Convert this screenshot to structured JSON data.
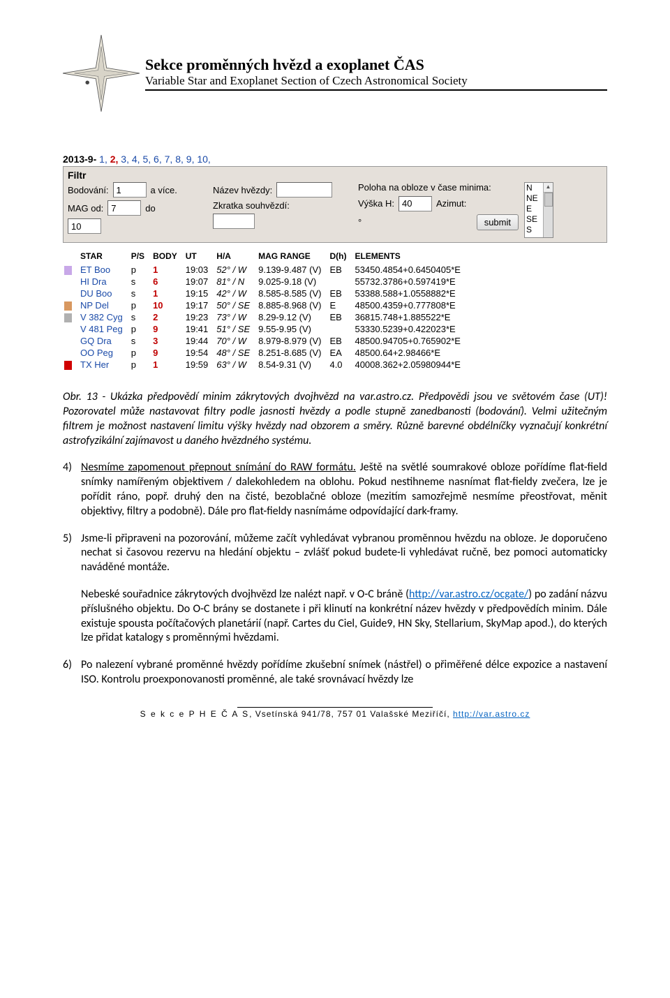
{
  "header": {
    "title": "Sekce proměnných hvězd a exoplanet ČAS",
    "subtitle": "Variable Star and Exoplanet Section of Czech Astronomical Society"
  },
  "date": {
    "prefix": "2013-9-",
    "days": [
      "1",
      "2",
      "3",
      "4",
      "5",
      "6",
      "7",
      "8",
      "9",
      "10"
    ],
    "highlight": "2"
  },
  "filter": {
    "title": "Filtr",
    "labels": {
      "bodovani": "Bodování:",
      "avice": "a více.",
      "magod": "MAG od:",
      "do": "do",
      "nazev": "Název hvězdy:",
      "zkratka": "Zkratka souhvězdí:",
      "poloha": "Poloha na obloze v čase minima:",
      "vyska": "Výška H:",
      "deg": "°",
      "azimut": "Azimut:",
      "submit": "submit"
    },
    "values": {
      "bodovani": "1",
      "magod": "7",
      "magdo": "10",
      "nazev": "",
      "zkratka": "",
      "vyska": "40"
    },
    "azimut_opts": [
      "N",
      "NE",
      "E",
      "SE",
      "S"
    ]
  },
  "table": {
    "headers": [
      "STAR",
      "P/S",
      "BODY",
      "UT",
      "H/A",
      "MAG RANGE",
      "D(h)",
      "ELEMENTS"
    ],
    "rows": [
      {
        "m": "#c8a8e8",
        "star": "ET Boo",
        "ps": "p",
        "body": "1",
        "ut": "19:03",
        "ha": "52° / W",
        "mag": "9.139-9.487 (V)",
        "dh": "EB",
        "el": "53450.4854+0.6450405*E"
      },
      {
        "m": "",
        "star": "HI Dra",
        "ps": "s",
        "body": "6",
        "ut": "19:07",
        "ha": "81° / N",
        "mag": "9.025-9.18 (V)",
        "dh": "",
        "el": "55732.3786+0.597419*E"
      },
      {
        "m": "",
        "star": "DU Boo",
        "ps": "s",
        "body": "1",
        "ut": "19:15",
        "ha": "42° / W",
        "mag": "8.585-8.585 (V)",
        "dh": "EB",
        "el": "53388.588+1.0558882*E"
      },
      {
        "m": "#d89860",
        "star": "NP Del",
        "ps": "p",
        "body": "10",
        "ut": "19:17",
        "ha": "50° / SE",
        "mag": "8.885-8.968 (V)",
        "dh": "E",
        "el": "48500.4359+0.777808*E"
      },
      {
        "m": "#b0b0b0",
        "star": "V 382 Cyg",
        "ps": "s",
        "body": "2",
        "ut": "19:23",
        "ha": "73° / W",
        "mag": "8.29-9.12 (V)",
        "dh": "EB",
        "el": "36815.748+1.885522*E"
      },
      {
        "m": "",
        "star": "V 481 Peg",
        "ps": "p",
        "body": "9",
        "ut": "19:41",
        "ha": "51° / SE",
        "mag": "9.55-9.95 (V)",
        "dh": "",
        "el": "53330.5239+0.422023*E"
      },
      {
        "m": "",
        "star": "GQ Dra",
        "ps": "s",
        "body": "3",
        "ut": "19:44",
        "ha": "70° / W",
        "mag": "8.979-8.979 (V)",
        "dh": "EB",
        "el": "48500.94705+0.765902*E"
      },
      {
        "m": "",
        "star": "OO Peg",
        "ps": "p",
        "body": "9",
        "ut": "19:54",
        "ha": "48° / SE",
        "mag": "8.251-8.685 (V)",
        "dh": "EA",
        "el": "48500.64+2.98466*E"
      },
      {
        "m": "#d00000",
        "star": "TX Her",
        "ps": "p",
        "body": "1",
        "ut": "19:59",
        "ha": "63° / W",
        "mag": "8.54-9.31 (V)",
        "dh": "4.0",
        "el": "40008.362+2.05980944*E"
      }
    ]
  },
  "caption": "Obr. 13 - Ukázka předpovědí minim zákrytových dvojhvězd na var.astro.cz. Předpovědi jsou ve světovém čase (UT)! Pozorovatel může nastavovat filtry podle jasnosti hvězdy a podle stupně zanedbanosti (bodování). Velmi užitečným filtrem je možnost nastavení limitu výšky hvězdy nad obzorem a směry. Různě barevné obdélníčky vyznačují konkrétní astrofyzikální zajímavost u daného hvězdného systému.",
  "item4": {
    "num": "4)",
    "pre": "Nesmíme zapomenout přepnout snímání do RAW formátu.",
    "post": " Ještě na světlé soumrakové obloze pořídíme flat-field snímky namířeným objektivem / dalekohledem na oblohu. Pokud nestihneme nasnímat flat-fieldy zvečera, lze je pořídit ráno, popř. druhý den na čisté, bezoblačné obloze (mezitím samozřejmě nesmíme přeostřovat, měnit objektivy, filtry a podobně). Dále pro flat-fieldy nasnímáme odpovídající dark-framy."
  },
  "item5": {
    "num": "5)",
    "p1": "Jsme-li připraveni na pozorování, můžeme začít vyhledávat vybranou proměnnou hvězdu na obloze. Je doporučeno nechat si časovou rezervu na hledání objektu – zvlášť pokud budete-li vyhledávat ručně, bez pomoci automaticky naváděné montáže.",
    "p2a": "Nebeské souřadnice zákrytových dvojhvězd lze nalézt např. v O-C bráně (",
    "link": "http://var.astro.cz/ocgate/",
    "p2b": ") po zadání názvu příslušného objektu. Do O-C brány se dostanete i při klinutí na konkrétní název hvězdy v předpovědích minim. Dále existuje spousta počítačových planetárií (např. Cartes du Ciel, Guide9, HN Sky, Stellarium, SkyMap apod.), do kterých lze přidat katalogy s proměnnými hvězdami."
  },
  "item6": {
    "num": "6)",
    "text": "Po nalezení vybrané proměnné hvězdy pořídíme zkušební snímek (nástřel) o přiměřené délce expozice a nastavení ISO. Kontrolu proexponovanosti proměnné, ale také srovnávací hvězdy lze"
  },
  "footer": {
    "line1a": "S e k c e  P H E  Č A S",
    "line1b": ", Vsetínská 941/78, 757 01 Valašské Meziříčí, ",
    "link": "http://var.astro.cz"
  }
}
